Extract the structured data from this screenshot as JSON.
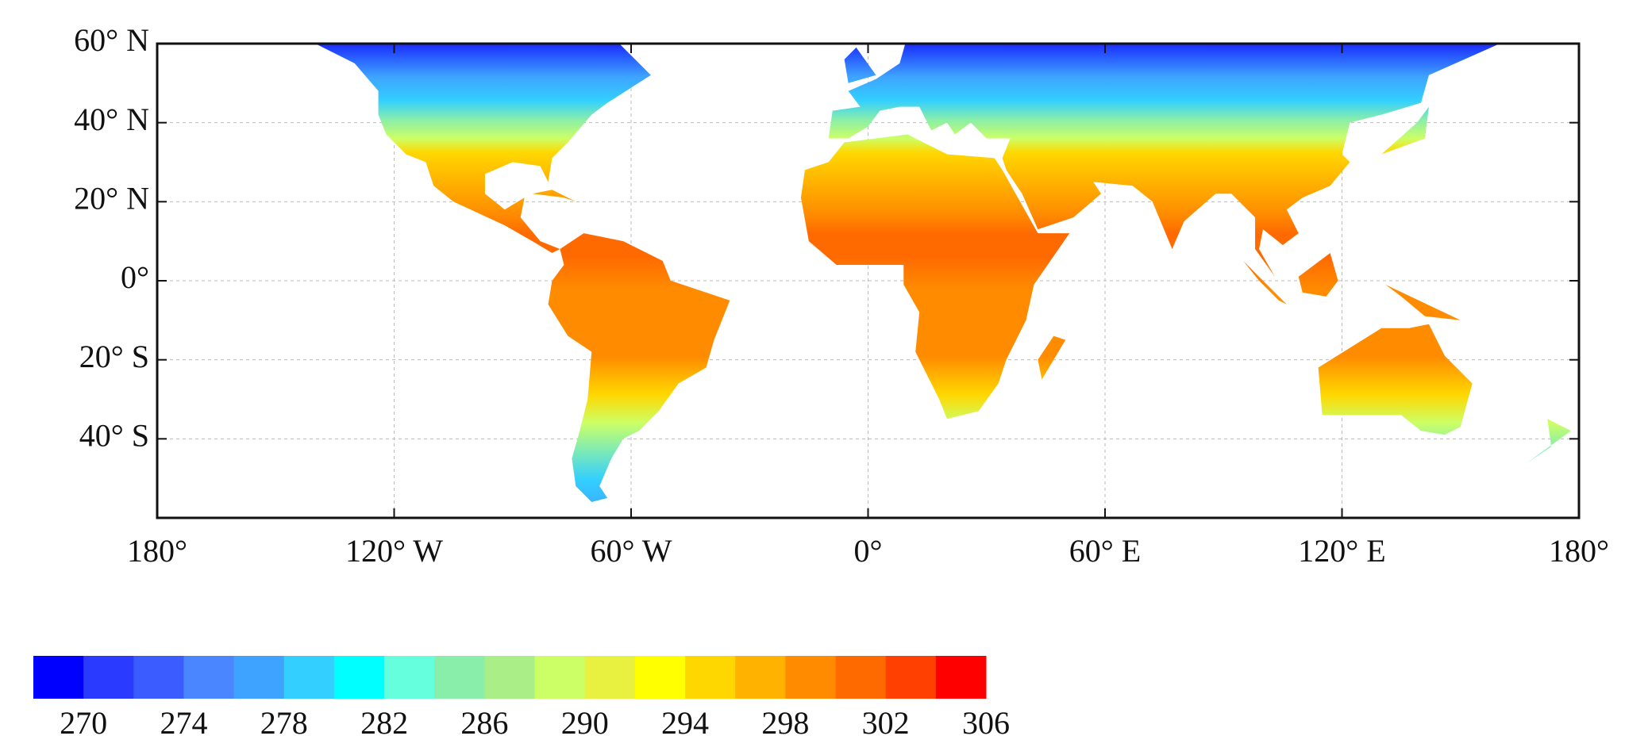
{
  "map": {
    "xlim": [
      -180,
      180
    ],
    "ylim": [
      -60,
      60
    ],
    "xticks": [
      {
        "value": -180,
        "label": "180°"
      },
      {
        "value": -120,
        "label": "120° W"
      },
      {
        "value": -60,
        "label": "60° W"
      },
      {
        "value": 0,
        "label": "0°"
      },
      {
        "value": 60,
        "label": "60° E"
      },
      {
        "value": 120,
        "label": "120° E"
      },
      {
        "value": 180,
        "label": "180°"
      }
    ],
    "yticks": [
      {
        "value": 60,
        "label": "60° N"
      },
      {
        "value": 40,
        "label": "40° N"
      },
      {
        "value": 20,
        "label": "20° N"
      },
      {
        "value": 0,
        "label": "0°"
      },
      {
        "value": -20,
        "label": "20° S"
      },
      {
        "value": -40,
        "label": "40° S"
      }
    ],
    "grid": true,
    "colorbar": {
      "lim": [
        268,
        306
      ],
      "ticks": [
        270,
        274,
        278,
        282,
        286,
        290,
        294,
        298,
        302,
        306
      ],
      "colors": [
        "#0000ff",
        "#2a3bff",
        "#3b5cff",
        "#4a86ff",
        "#3ea3ff",
        "#33cfff",
        "#00ffff",
        "#66ffdd",
        "#88eeaa",
        "#aaee88",
        "#ccff66",
        "#e8f040",
        "#ffff00",
        "#ffd700",
        "#ffb300",
        "#ff8c00",
        "#ff6a00",
        "#ff4000",
        "#ff0000"
      ]
    }
  }
}
